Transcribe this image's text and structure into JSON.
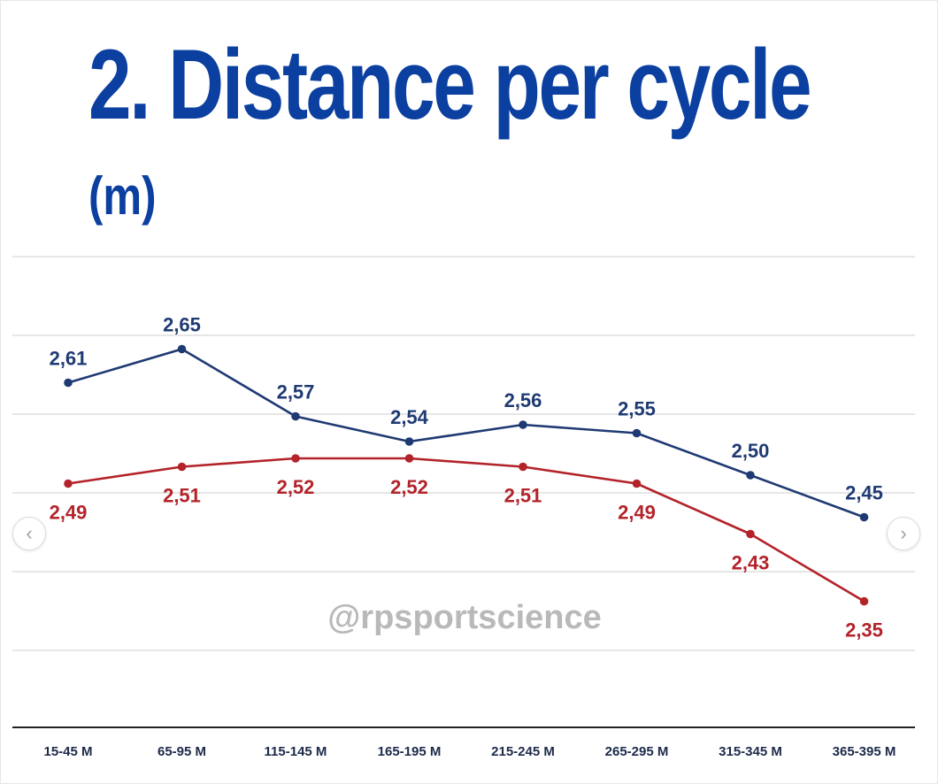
{
  "header": {
    "title": "2. Distance per cycle",
    "unit": "(m)"
  },
  "watermark": "@rpsportscience",
  "navigation": {
    "prev_icon": "‹",
    "next_icon": "›"
  },
  "colors": {
    "title": "#0b3fa0",
    "series_blue": "#1f3a73",
    "series_red": "#b3232a",
    "grid": "#dddddd",
    "axis": "#222222"
  },
  "chart_data": {
    "type": "line",
    "categories": [
      "15-45 M",
      "65-95 M",
      "115-145 M",
      "165-195 M",
      "215-245 M",
      "265-295 M",
      "315-345 M",
      "365-395 M"
    ],
    "series": [
      {
        "color": "#1f3a73",
        "values": [
          2.61,
          2.65,
          2.57,
          2.54,
          2.56,
          2.55,
          2.5,
          2.45
        ],
        "labels": [
          "2,61",
          "2,65",
          "2,57",
          "2,54",
          "2,56",
          "2,55",
          "2,50",
          "2,45"
        ]
      },
      {
        "color": "#b3232a",
        "values": [
          2.49,
          2.51,
          2.52,
          2.52,
          2.51,
          2.49,
          2.43,
          2.35
        ],
        "labels": [
          "2,49",
          "2,51",
          "2,52",
          "2,52",
          "2,51",
          "2,49",
          "2,43",
          "2,35"
        ]
      }
    ],
    "ylim": [
      2.2,
      2.76
    ],
    "grid": true,
    "legend": "none"
  }
}
